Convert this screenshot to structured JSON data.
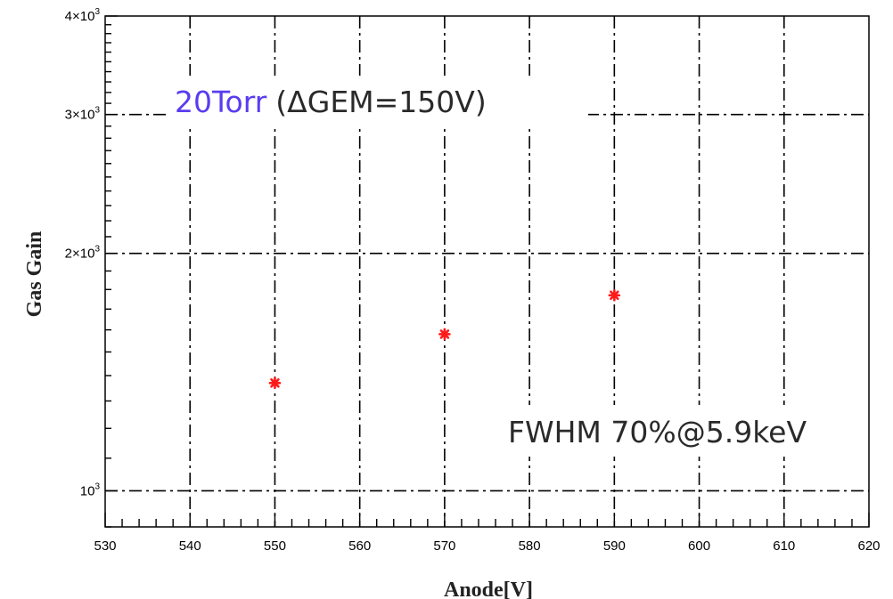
{
  "chart_data": {
    "type": "scatter",
    "xlabel": "Anode[V]",
    "ylabel": "Gas Gain",
    "xlim": [
      530,
      620
    ],
    "ylim": [
      900,
      4000
    ],
    "y_scale": "log",
    "grid": true,
    "x_ticks": [
      530,
      540,
      550,
      560,
      570,
      580,
      590,
      600,
      610,
      620
    ],
    "x_tick_labels": [
      "530",
      "540",
      "550",
      "560",
      "570",
      "580",
      "590",
      "600",
      "610",
      "620"
    ],
    "y_ticks": [
      {
        "value": 1000,
        "mantissa": "",
        "exponent": "3"
      },
      {
        "value": 2000,
        "mantissa": "2",
        "exponent": "3"
      },
      {
        "value": 3000,
        "mantissa": "3",
        "exponent": "3"
      },
      {
        "value": 4000,
        "mantissa": "4",
        "exponent": "3"
      }
    ],
    "series": [
      {
        "x": [
          550,
          570,
          590
        ],
        "y": [
          1370,
          1580,
          1770
        ],
        "color": "#ff1a1a",
        "marker": "star"
      }
    ],
    "annotations": {
      "condition_pressure": "20Torr",
      "condition_rest": "(ΔGEM=150V)",
      "resolution": "FWHM 70%@5.9keV"
    },
    "colors": {
      "pressure_text": "#5a3cf0",
      "annotation_text": "#2a2a2a",
      "marker": "#ff1a1a"
    }
  }
}
